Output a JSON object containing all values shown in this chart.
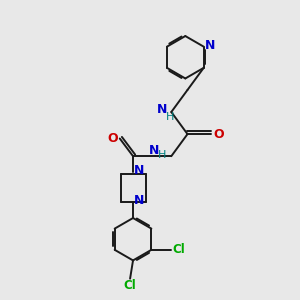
{
  "bg_color": "#e8e8e8",
  "bond_color": "#1a1a1a",
  "N_color": "#0000cc",
  "O_color": "#cc0000",
  "Cl_color": "#00aa00",
  "H_color": "#008080",
  "line_width": 1.4,
  "fig_size": [
    3.0,
    3.0
  ],
  "dpi": 100,
  "xlim": [
    0,
    10
  ],
  "ylim": [
    0,
    10
  ]
}
